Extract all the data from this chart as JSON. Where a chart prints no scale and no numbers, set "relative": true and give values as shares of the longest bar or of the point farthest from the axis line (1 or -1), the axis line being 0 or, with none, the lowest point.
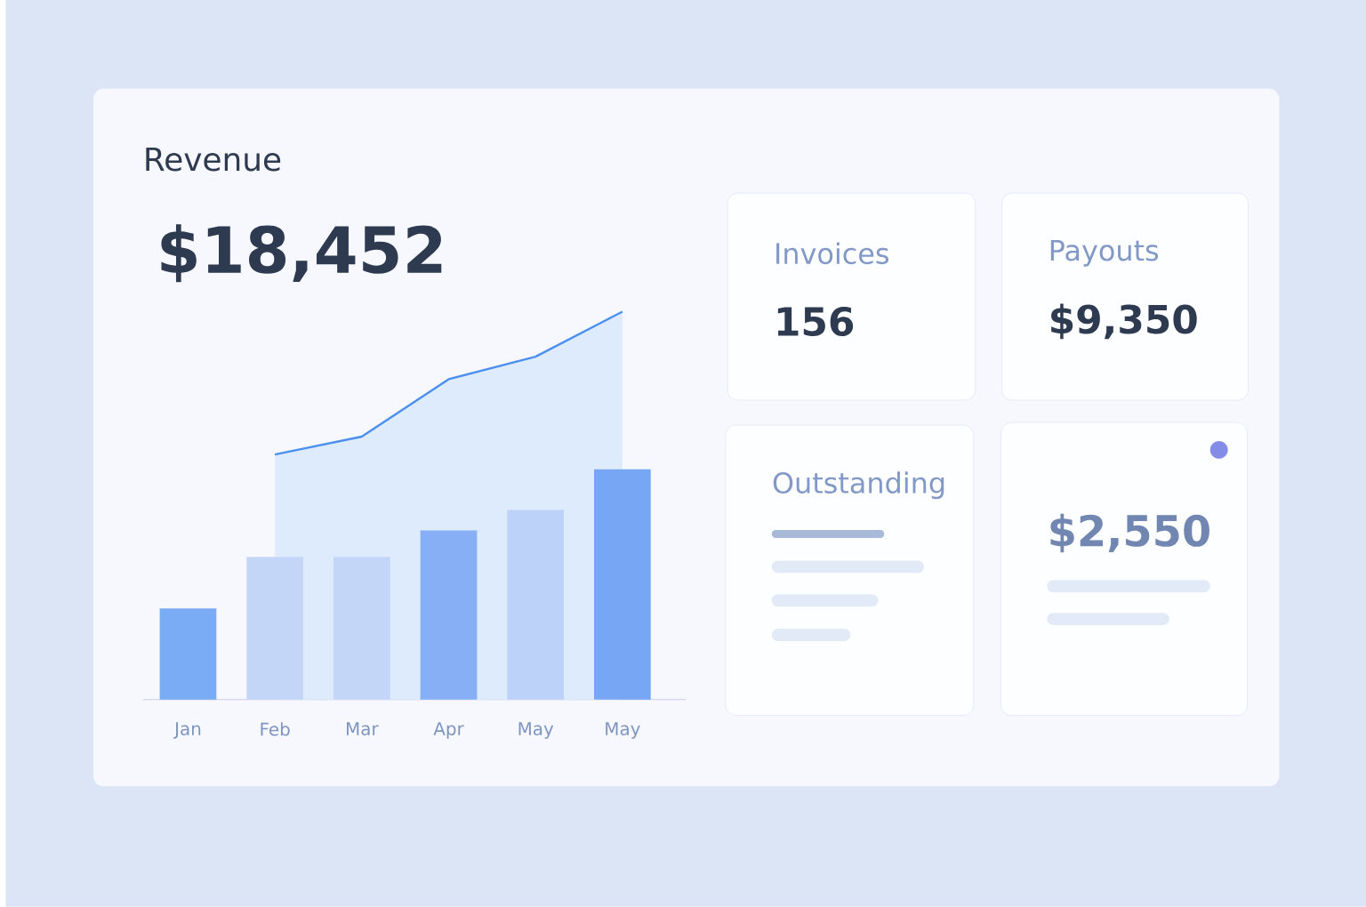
{
  "chart_data": [
    {
      "type": "bar",
      "title": "Revenue",
      "subtitle": "$18,452",
      "relative": true,
      "categories": [
        "Jan",
        "Feb",
        "Mar",
        "Apr",
        "May",
        "May"
      ],
      "series": [
        {
          "type": "area",
          "color": "#4a8ff0",
          "values": [
            null,
            0.632,
            0.678,
            0.826,
            0.884,
            1.0
          ]
        },
        {
          "type": "bar",
          "colors": [
            "#7aacf5",
            "#c3d6f8",
            "#c3d6f8",
            "#86aff5",
            "#bcd2f8",
            "#77a6f4"
          ],
          "values": [
            0.235,
            0.368,
            0.368,
            0.436,
            0.489,
            0.594
          ]
        }
      ]
    },
    {
      "type": "other",
      "title": "Invoices",
      "annotations": [
        "156"
      ]
    },
    {
      "type": "other",
      "title": "Payouts",
      "annotations": [
        "$9,350"
      ]
    },
    {
      "type": "other",
      "title": "Outstanding"
    },
    {
      "type": "other",
      "annotations": [
        "$2,550"
      ]
    }
  ]
}
